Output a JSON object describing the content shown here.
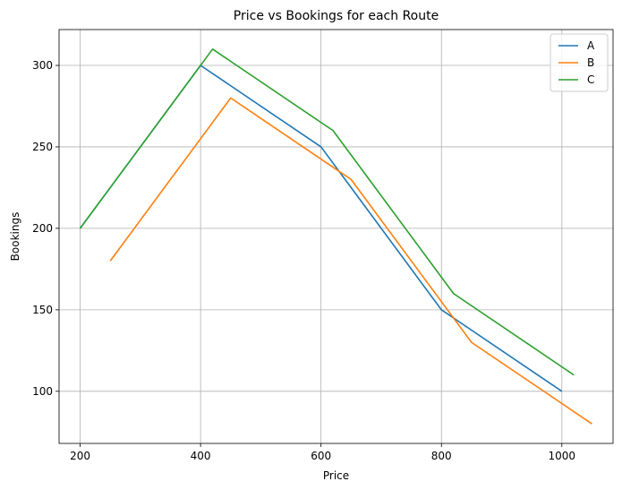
{
  "chart_data": {
    "type": "line",
    "title": "Price vs Bookings for each Route",
    "xlabel": "Price",
    "ylabel": "Bookings",
    "xlim": [
      165,
      1085
    ],
    "ylim": [
      68,
      322
    ],
    "xticks": [
      200,
      400,
      600,
      800,
      1000
    ],
    "yticks": [
      100,
      150,
      200,
      250,
      300
    ],
    "grid": true,
    "legend_position": "top-right",
    "series": [
      {
        "name": "A",
        "color": "#1f77b4",
        "x": [
          200,
          400,
          600,
          800,
          1000
        ],
        "y": [
          200,
          300,
          250,
          150,
          100
        ]
      },
      {
        "name": "B",
        "color": "#ff7f0e",
        "x": [
          250,
          450,
          650,
          850,
          1050
        ],
        "y": [
          180,
          280,
          230,
          130,
          80
        ]
      },
      {
        "name": "C",
        "color": "#2ca02c",
        "x": [
          200,
          420,
          620,
          820,
          1020
        ],
        "y": [
          200,
          310,
          260,
          160,
          110
        ]
      }
    ]
  }
}
